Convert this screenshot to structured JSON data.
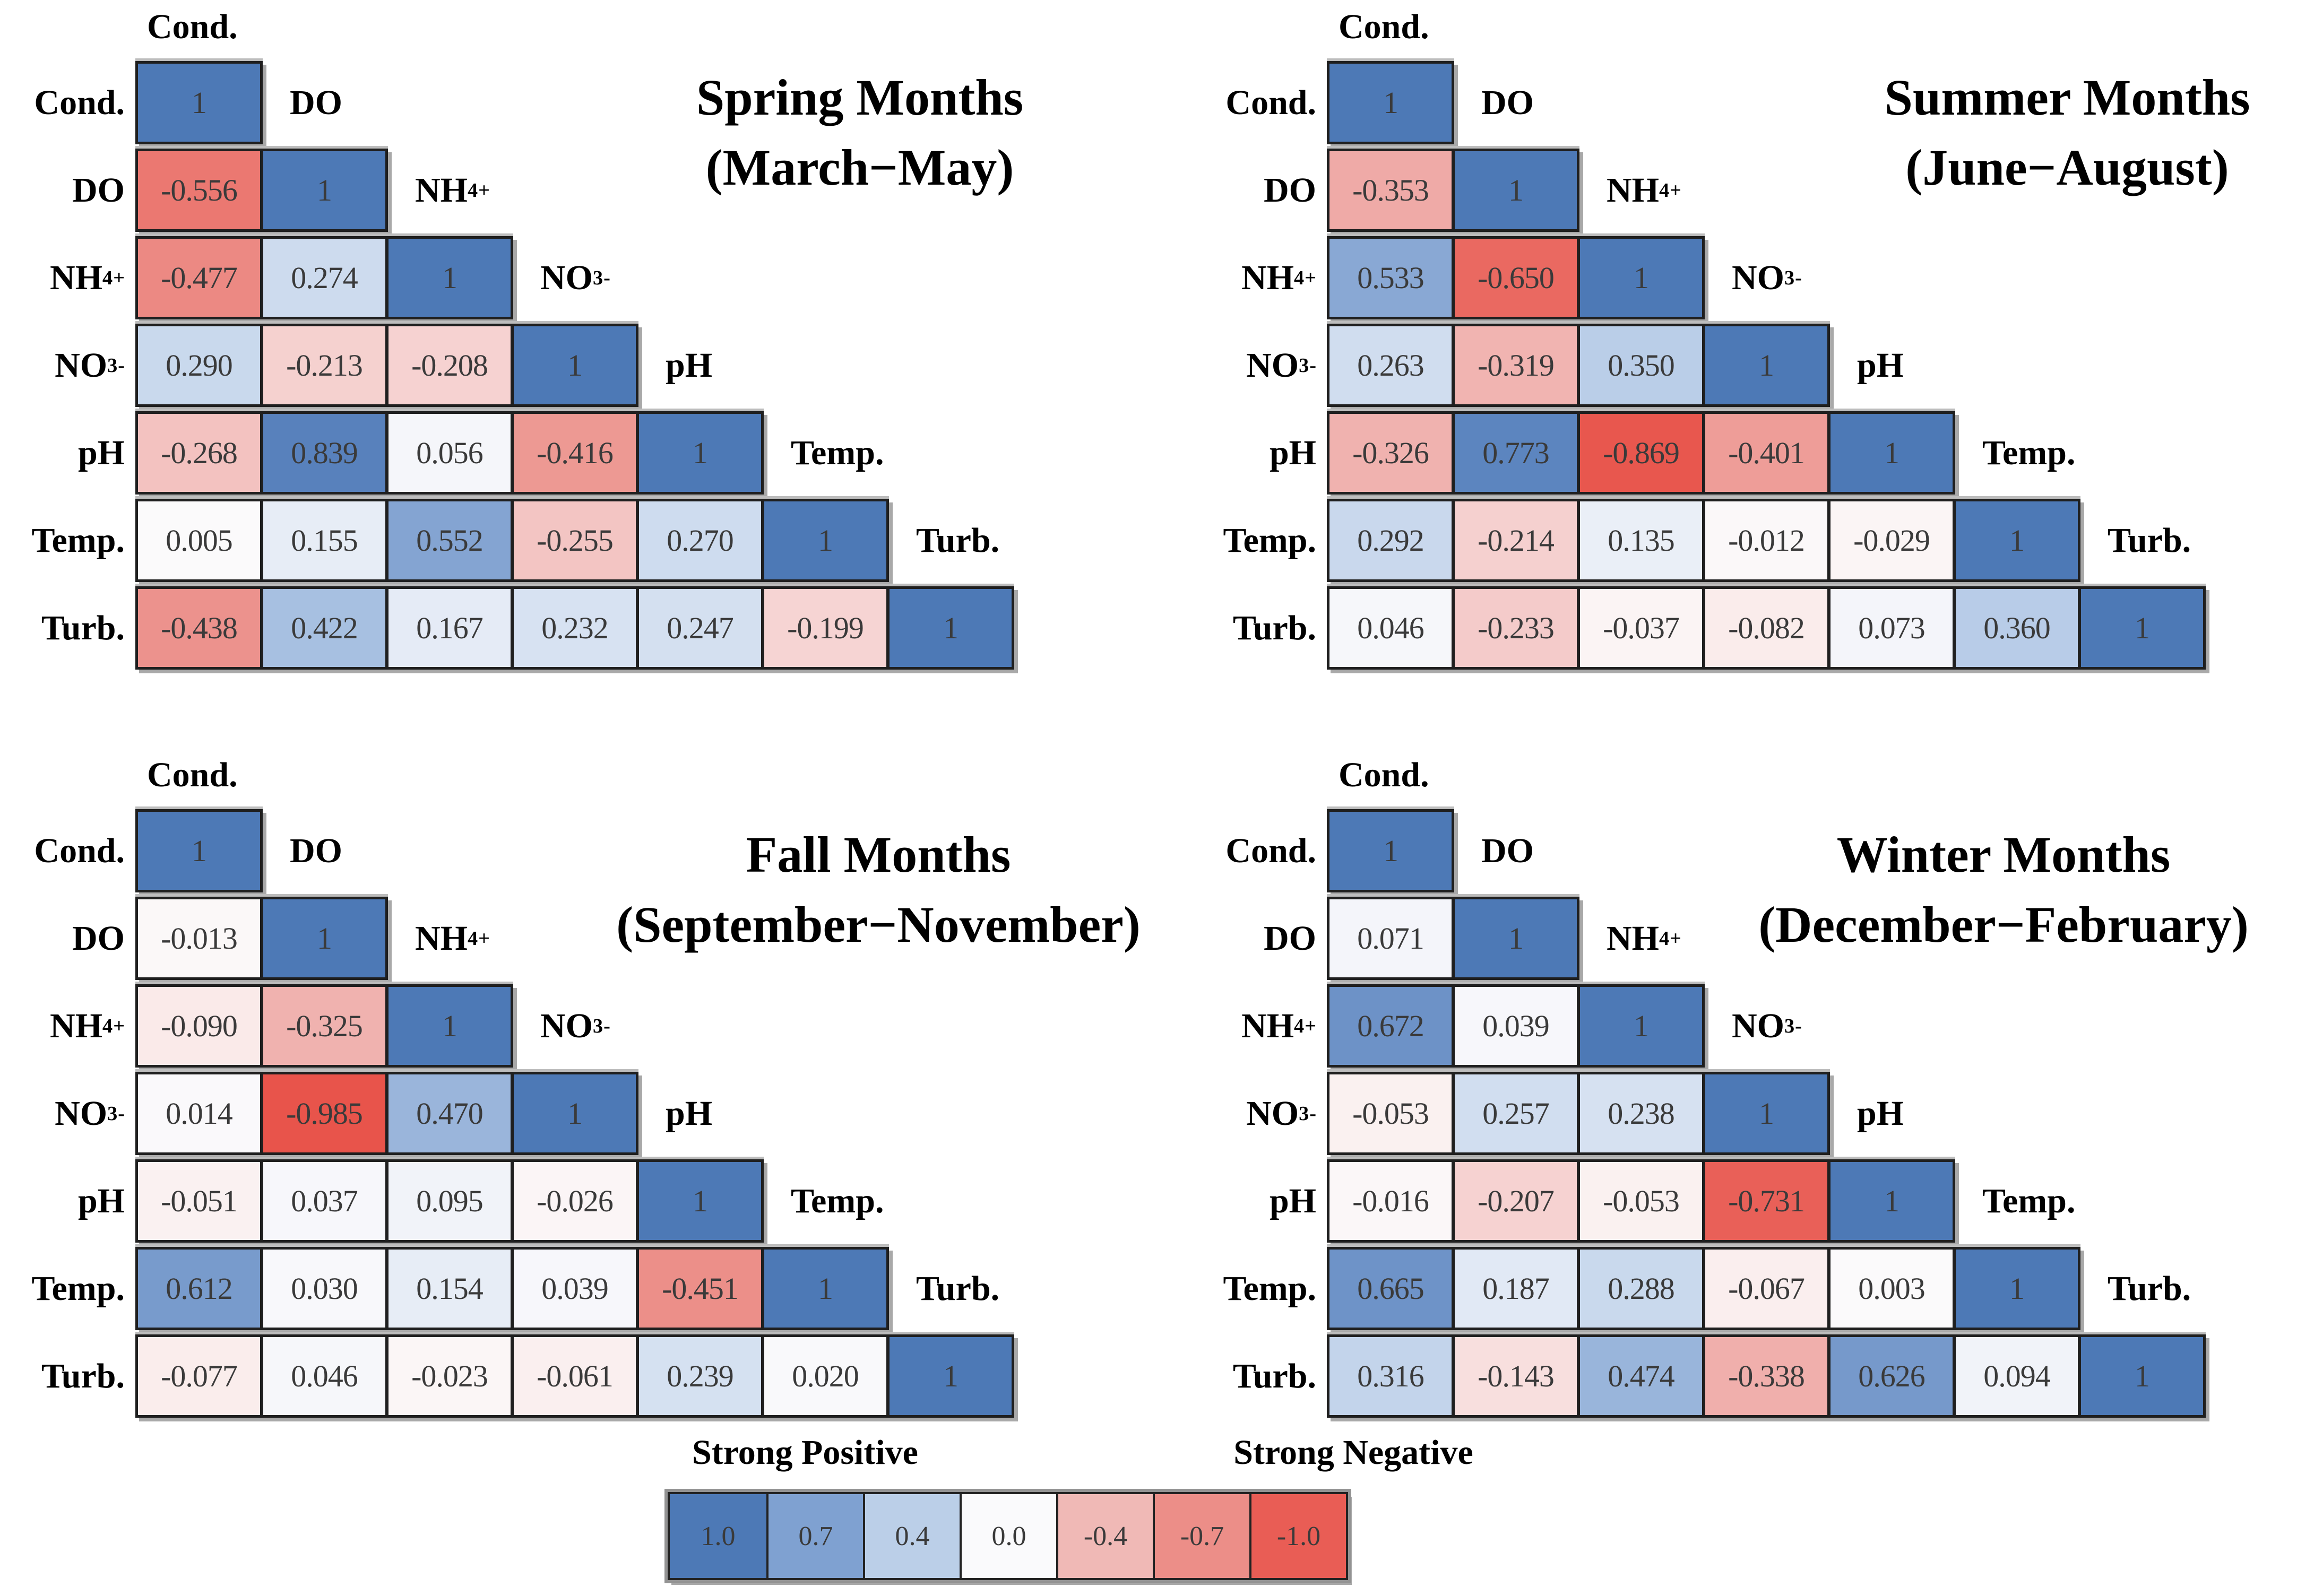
{
  "chart_data": {
    "type": "heatmap",
    "subtype": "lower-triangular-correlation-matrices",
    "variables": [
      "Cond.",
      "DO",
      "NH_{4}^{+}",
      "NO_{3}^{-}",
      "pH",
      "Temp.",
      "Turb."
    ],
    "panels": [
      {
        "id": "spring",
        "title_line1": "Spring Months",
        "title_line2": "(March−May)",
        "matrix": [
          [
            "1"
          ],
          [
            "-0.556",
            "1"
          ],
          [
            "-0.477",
            "0.274",
            "1"
          ],
          [
            "0.290",
            "-0.213",
            "-0.208",
            "1"
          ],
          [
            "-0.268",
            "0.839",
            "0.056",
            "-0.416",
            "1"
          ],
          [
            "0.005",
            "0.155",
            "0.552",
            "-0.255",
            "0.270",
            "1"
          ],
          [
            "-0.438",
            "0.422",
            "0.167",
            "0.232",
            "0.247",
            "-0.199",
            "1"
          ]
        ]
      },
      {
        "id": "summer",
        "title_line1": "Summer Months",
        "title_line2": "(June−August)",
        "matrix": [
          [
            "1"
          ],
          [
            "-0.353",
            "1"
          ],
          [
            "0.533",
            "-0.650",
            "1"
          ],
          [
            "0.263",
            "-0.319",
            "0.350",
            "1"
          ],
          [
            "-0.326",
            "0.773",
            "-0.869",
            "-0.401",
            "1"
          ],
          [
            "0.292",
            "-0.214",
            "0.135",
            "-0.012",
            "-0.029",
            "1"
          ],
          [
            "0.046",
            "-0.233",
            "-0.037",
            "-0.082",
            "0.073",
            "0.360",
            "1"
          ]
        ]
      },
      {
        "id": "fall",
        "title_line1": "Fall Months",
        "title_line2": "(September−November)",
        "matrix": [
          [
            "1"
          ],
          [
            "-0.013",
            "1"
          ],
          [
            "-0.090",
            "-0.325",
            "1"
          ],
          [
            "0.014",
            "-0.985",
            "0.470",
            "1"
          ],
          [
            "-0.051",
            "0.037",
            "0.095",
            "-0.026",
            "1"
          ],
          [
            "0.612",
            "0.030",
            "0.154",
            "0.039",
            "-0.451",
            "1"
          ],
          [
            "-0.077",
            "0.046",
            "-0.023",
            "-0.061",
            "0.239",
            "0.020",
            "1"
          ]
        ]
      },
      {
        "id": "winter",
        "title_line1": "Winter Months",
        "title_line2": "(December−February)",
        "matrix": [
          [
            "1"
          ],
          [
            "0.071",
            "1"
          ],
          [
            "0.672",
            "0.039",
            "1"
          ],
          [
            "-0.053",
            "0.257",
            "0.238",
            "1"
          ],
          [
            "-0.016",
            "-0.207",
            "-0.053",
            "-0.731",
            "1"
          ],
          [
            "0.665",
            "0.187",
            "0.288",
            "-0.067",
            "0.003",
            "1"
          ],
          [
            "0.316",
            "-0.143",
            "0.474",
            "-0.338",
            "0.626",
            "0.094",
            "1"
          ]
        ]
      }
    ],
    "colorbar": {
      "positive_label": "Strong Positive",
      "negative_label": "Strong Negative",
      "ticks": [
        "1.0",
        "0.7",
        "0.4",
        "0.0",
        "-0.4",
        "-0.7",
        "-1.0"
      ],
      "tick_colors": [
        "#4d79b6",
        "#7fa1d1",
        "#bbcfe8",
        "#fafafc",
        "#f0b9b6",
        "#ec8e88",
        "#e95d55"
      ]
    },
    "value_range": [
      -1,
      1
    ],
    "strong_positive_color": "#4d79b6",
    "neutral_color": "#fbfafb",
    "strong_negative_color": "#e8544b"
  }
}
